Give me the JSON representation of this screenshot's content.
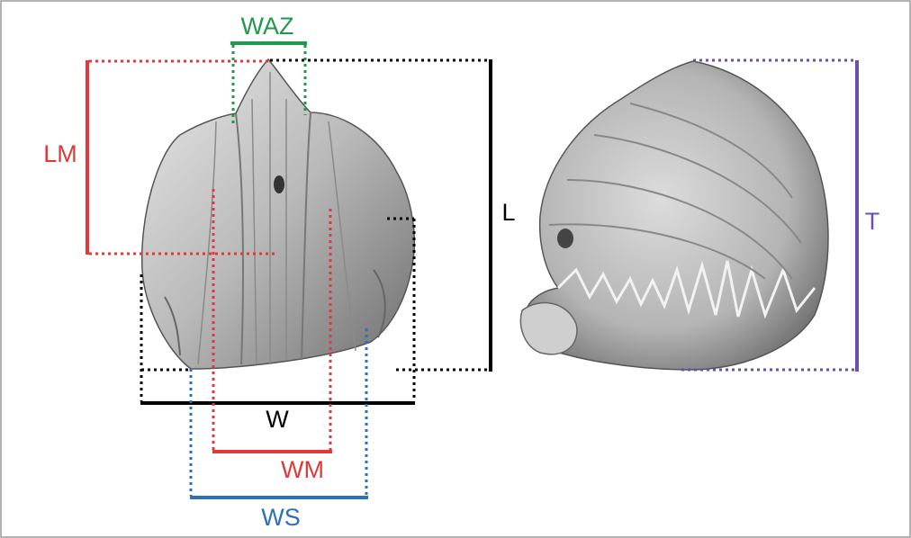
{
  "labels": {
    "waz": "WAZ",
    "lm": "LM",
    "l": "L",
    "w": "W",
    "wm": "WM",
    "ws": "WS",
    "t": "T"
  }
}
